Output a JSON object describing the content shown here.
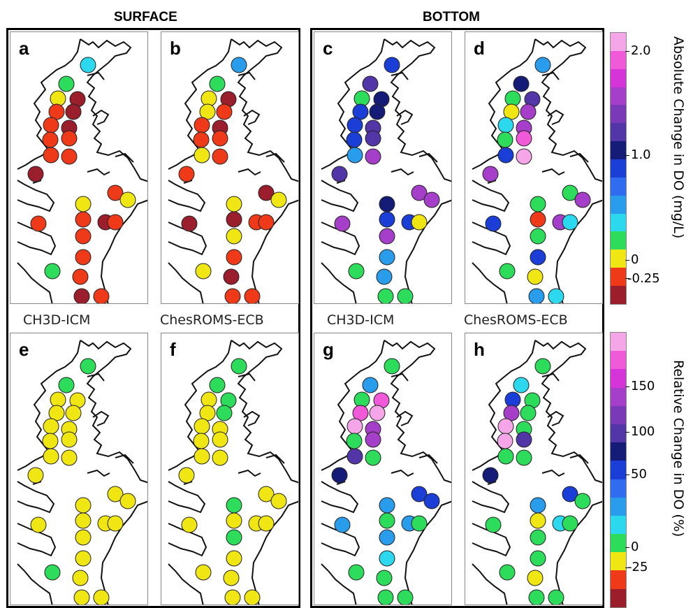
{
  "headings": {
    "surface": "SURFACE",
    "bottom": "BOTTOM"
  },
  "model_labels": {
    "left": "CH3D-ICM",
    "right": "ChesROMS-ECB"
  },
  "panel_letters": [
    "a",
    "b",
    "c",
    "d",
    "e",
    "f",
    "g",
    "h"
  ],
  "colorbar_absolute": {
    "title": "Absolute Change in DO (mg/L)",
    "ticks": [
      "2.0",
      "1.0",
      "0",
      "-0.25"
    ],
    "colors": [
      "#f5a6e8",
      "#f05ad8",
      "#d535d8",
      "#a53ec8",
      "#7a3ab8",
      "#5236a8",
      "#141c78",
      "#1b3ed6",
      "#2f6cf0",
      "#2a9cec",
      "#2cd8ee",
      "#2ddc5a",
      "#f0e614",
      "#ef3a1a",
      "#9b1e2c"
    ]
  },
  "colorbar_relative": {
    "title": "Relative Change in DO (%)",
    "ticks": [
      "150",
      "100",
      "50",
      "0",
      "-25"
    ],
    "colors": [
      "#f5a6e8",
      "#f05ad8",
      "#d535d8",
      "#a53ec8",
      "#7a3ab8",
      "#5236a8",
      "#141c78",
      "#1b3ed6",
      "#2f6cf0",
      "#2a9cec",
      "#2cd8ee",
      "#2ddc5a",
      "#f0e614",
      "#ef3a1a",
      "#9b1e2c"
    ]
  },
  "palette": {
    "darkred": "#9b1e2c",
    "red": "#ef3a1a",
    "yellow": "#f0e614",
    "green": "#2ddc5a",
    "cyan": "#2cd8ee",
    "lightblue": "#2a9cec",
    "blue": "#1b3ed6",
    "navy": "#141c78",
    "indigo": "#5236a8",
    "violet": "#a53ec8",
    "magenta": "#f05ad8",
    "pink": "#f5a6e8"
  },
  "station_colors": {
    "a": [
      "cyan",
      "green",
      "yellow",
      "darkred",
      "red",
      "darkred",
      "red",
      "darkred",
      "red",
      "red",
      "red",
      "red",
      "darkred",
      "red",
      "yellow",
      "yellow",
      "red",
      "darkred",
      "red",
      "red",
      "red",
      "green",
      "red",
      "darkred",
      "red",
      "red"
    ],
    "b": [
      "lightblue",
      "green",
      "yellow",
      "darkred",
      "yellow",
      "red",
      "red",
      "darkred",
      "red",
      "red",
      "yellow",
      "red",
      "red",
      "darkred",
      "yellow",
      "yellow",
      "darkred",
      "red",
      "darkred",
      "yellow",
      "red",
      "yellow",
      "darkred",
      "red",
      "red",
      "red"
    ],
    "c": [
      "blue",
      "indigo",
      "green",
      "navy",
      "blue",
      "navy",
      "blue",
      "indigo",
      "blue",
      "indigo",
      "lightblue",
      "violet",
      "indigo",
      "violet",
      "navy",
      "violet",
      "blue",
      "blue",
      "violet",
      "violet",
      "lightblue",
      "green",
      "lightblue",
      "green",
      "green",
      "yellow"
    ],
    "d": [
      "lightblue",
      "navy",
      "green",
      "indigo",
      "yellow",
      "violet",
      "cyan",
      "violet",
      "green",
      "magenta",
      "blue",
      "pink",
      "violet",
      "green",
      "green",
      "violet",
      "red",
      "violet",
      "blue",
      "green",
      "blue",
      "green",
      "yellow",
      "lightblue",
      "cyan",
      "cyan"
    ],
    "e": [
      "green",
      "green",
      "yellow",
      "yellow",
      "yellow",
      "yellow",
      "yellow",
      "yellow",
      "yellow",
      "yellow",
      "yellow",
      "yellow",
      "yellow",
      "yellow",
      "yellow",
      "yellow",
      "yellow",
      "yellow",
      "yellow",
      "yellow",
      "yellow",
      "green",
      "yellow",
      "yellow",
      "yellow",
      "yellow"
    ],
    "f": [
      "green",
      "green",
      "yellow",
      "green",
      "yellow",
      "green",
      "yellow",
      "yellow",
      "yellow",
      "yellow",
      "yellow",
      "yellow",
      "yellow",
      "yellow",
      "green",
      "yellow",
      "yellow",
      "yellow",
      "yellow",
      "green",
      "yellow",
      "yellow",
      "yellow",
      "yellow",
      "yellow",
      "yellow"
    ],
    "g": [
      "green",
      "lightblue",
      "green",
      "magenta",
      "magenta",
      "pink",
      "pink",
      "violet",
      "green",
      "violet",
      "indigo",
      "green",
      "navy",
      "blue",
      "lightblue",
      "blue",
      "green",
      "lightblue",
      "lightblue",
      "lightblue",
      "cyan",
      "green",
      "green",
      "green",
      "green",
      "green"
    ],
    "h": [
      "green",
      "cyan",
      "blue",
      "green",
      "violet",
      "green",
      "pink",
      "green",
      "pink",
      "indigo",
      "green",
      "green",
      "navy",
      "blue",
      "lightblue",
      "green",
      "yellow",
      "cyan",
      "green",
      "green",
      "green",
      "green",
      "yellow",
      "green",
      "green",
      "green"
    ]
  }
}
